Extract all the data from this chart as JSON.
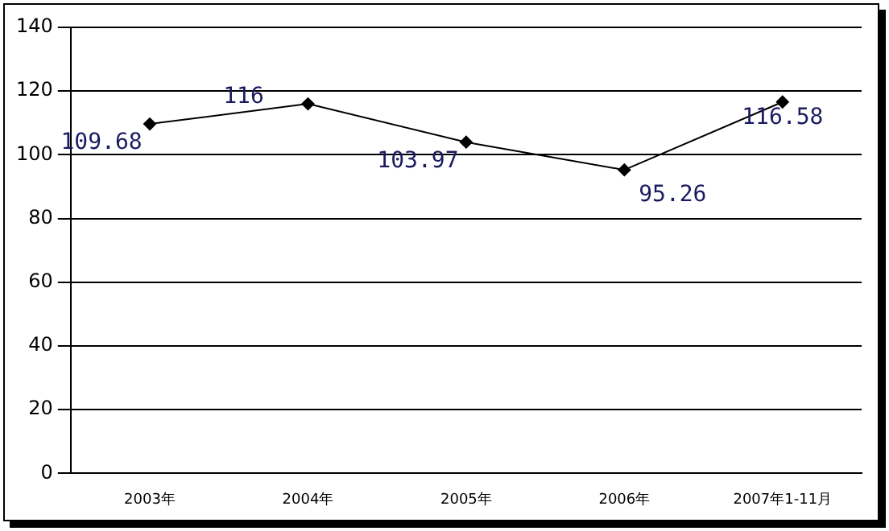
{
  "chart_data": {
    "type": "line",
    "categories": [
      "2003年",
      "2004年",
      "2005年",
      "2006年",
      "2007年1-11月"
    ],
    "series": [
      {
        "color": "#000000",
        "values": [
          109.68,
          116,
          103.97,
          95.26,
          116.58
        ]
      }
    ],
    "ylim": [
      0,
      140
    ],
    "yticks": [
      0,
      20,
      40,
      60,
      80,
      100,
      120,
      140
    ],
    "grid": "y",
    "legend": false,
    "marker": "diamond",
    "line_style": "solid",
    "data_labels": true
  }
}
